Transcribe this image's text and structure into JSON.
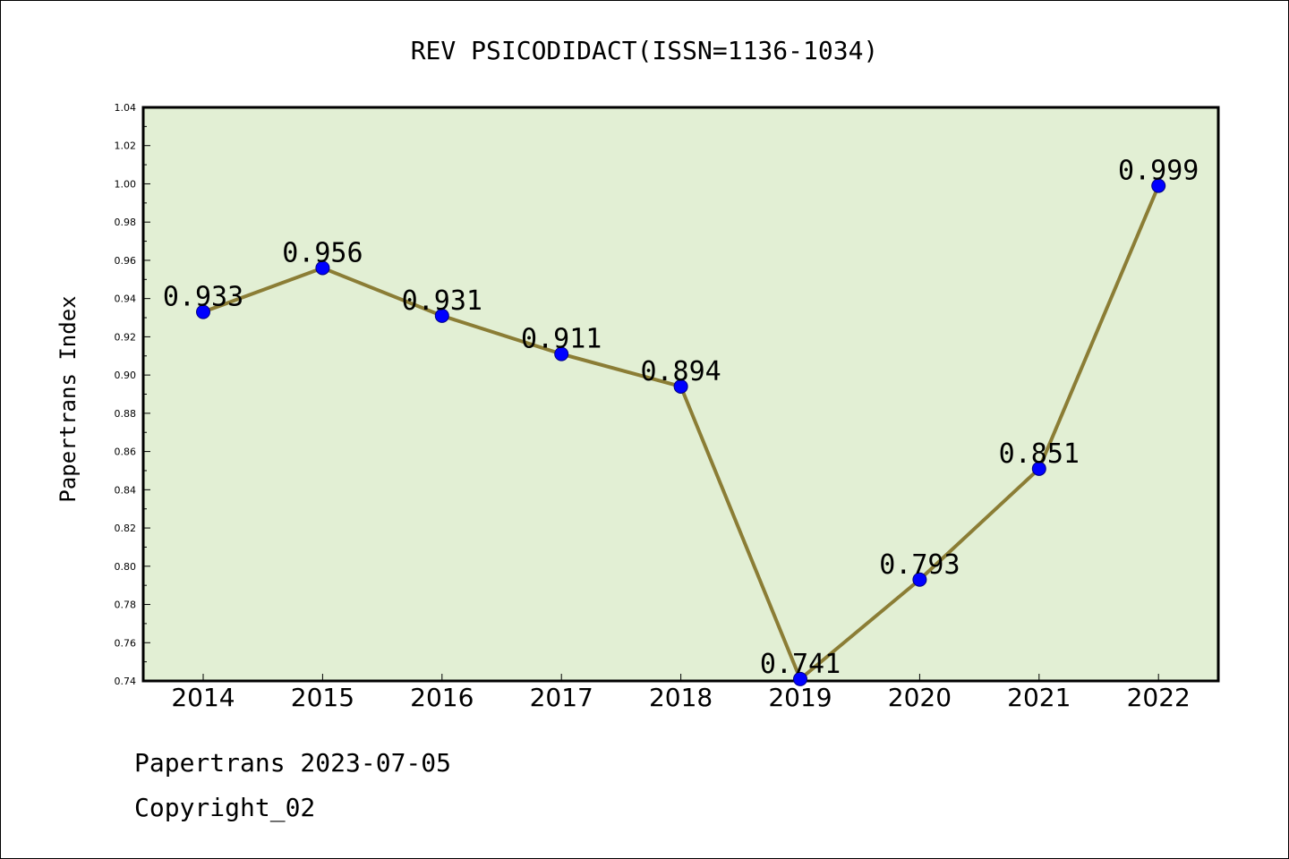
{
  "chart_data": {
    "type": "line",
    "title": "REV PSICODIDACT(ISSN=1136-1034)",
    "xlabel": "",
    "ylabel": "Papertrans Index",
    "categories": [
      "2014",
      "2015",
      "2016",
      "2017",
      "2018",
      "2019",
      "2020",
      "2021",
      "2022"
    ],
    "series": [
      {
        "values": [
          0.933,
          0.956,
          0.931,
          0.911,
          0.894,
          0.741,
          0.793,
          0.851,
          0.999
        ],
        "data_labels": [
          "0.933",
          "0.956",
          "0.931",
          "0.911",
          "0.894",
          "0.741",
          "0.793",
          "0.851",
          "0.999"
        ],
        "line_color": "#8b7d35",
        "marker_color": "#0000ff"
      }
    ],
    "ylim": [
      0.74,
      1.04
    ],
    "yticks": [
      "0.74",
      "0.76",
      "0.78",
      "0.80",
      "0.82",
      "0.84",
      "0.86",
      "0.88",
      "0.90",
      "0.92",
      "0.94",
      "0.96",
      "0.98",
      "1.00",
      "1.02",
      "1.04"
    ],
    "grid": false,
    "legend": "none",
    "plot_background": "#e2efd4"
  },
  "footer": {
    "line1": "Papertrans 2023-07-05",
    "line2": "Copyright_02"
  }
}
